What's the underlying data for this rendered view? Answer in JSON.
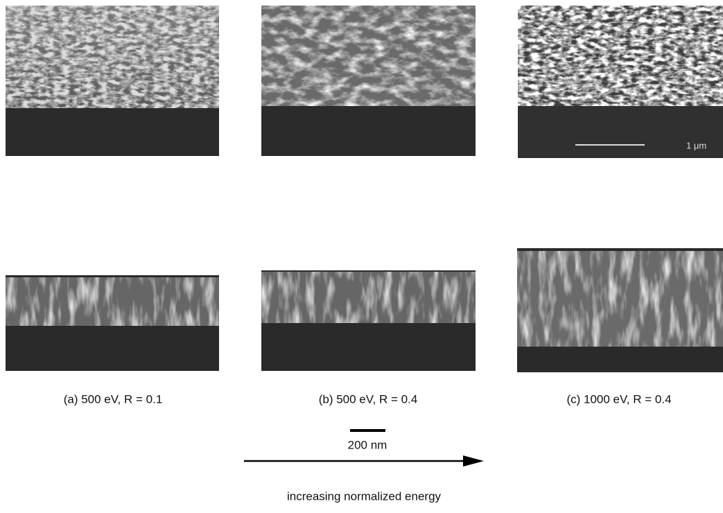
{
  "figure": {
    "panels": [
      {
        "caption": "(a) 500 eV, R = 0.1"
      },
      {
        "caption": "(b) 500 eV, R = 0.4"
      },
      {
        "caption": "(c) 1000 eV, R = 0.4"
      }
    ],
    "micrograph_scale_label": "1 μm",
    "scale_bar_label": "200 nm",
    "arrow_label": "increasing normalized energy"
  }
}
